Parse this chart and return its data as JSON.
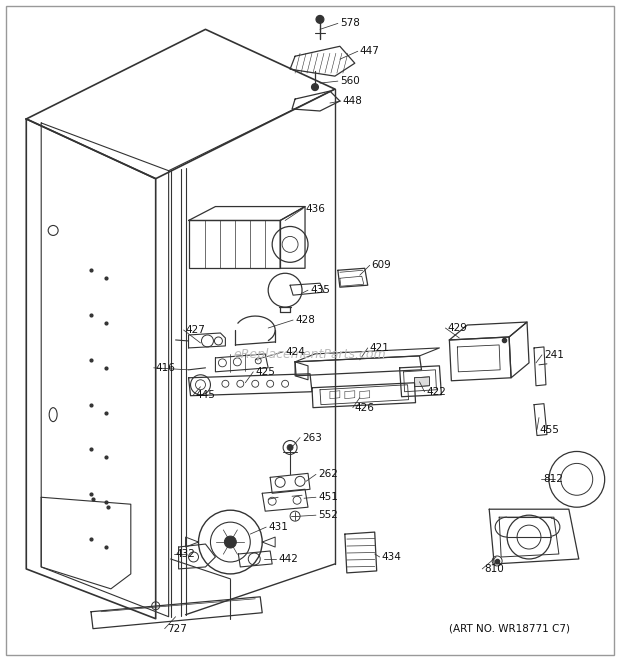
{
  "art_no_text": "(ART NO. WR18771 C7)",
  "watermark_text": "eReplacementParts.com",
  "background_color": "#ffffff",
  "line_color": "#333333",
  "text_color": "#111111",
  "watermark_color": "#bbbbbb",
  "fig_width": 6.2,
  "fig_height": 6.61,
  "dpi": 100
}
